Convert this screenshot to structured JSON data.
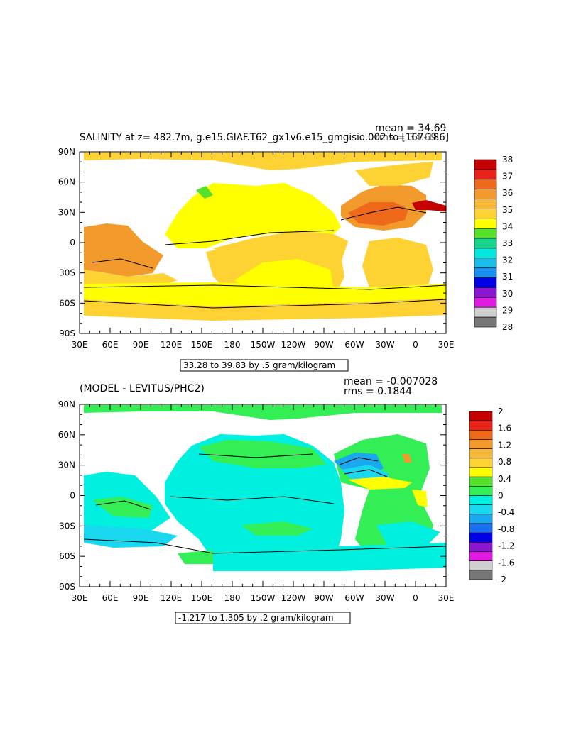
{
  "chart_data": [
    {
      "type": "heatmap",
      "title": "SALINITY at z= 482.7m, g.e15.GIAF.T62_gx1v6.e15_gmgisio.002 to [167-186]",
      "stats": {
        "mean": "mean = 34.69",
        "rms": "rms = 34.69"
      },
      "range_label": "33.28 to 39.83 by .5 gram/kilogram",
      "x_ticks": [
        "30E",
        "60E",
        "90E",
        "120E",
        "150E",
        "180",
        "150W",
        "120W",
        "90W",
        "60W",
        "30W",
        "0",
        "30E"
      ],
      "y_ticks": [
        "90N",
        "60N",
        "30N",
        "0",
        "30S",
        "60S",
        "90S"
      ],
      "colorbar": {
        "labels": [
          "38",
          "37",
          "36",
          "35",
          "34",
          "33",
          "32",
          "31",
          "30",
          "29",
          "28"
        ],
        "colors": [
          "#c40000",
          "#e8231a",
          "#ee6a1a",
          "#f39a2d",
          "#f7b838",
          "#fed233",
          "#ffff00",
          "#55e02a",
          "#17d58a",
          "#00e8e0",
          "#19bde8",
          "#1a8fef",
          "#0000e6",
          "#8a16d1",
          "#e01ae0",
          "#cfcfcf",
          "#777777"
        ]
      }
    },
    {
      "type": "heatmap",
      "title": "(MODEL - LEVITUS/PHC2)",
      "stats": {
        "mean": "mean = -0.007028",
        "rms": "rms = 0.1844"
      },
      "range_label": "-1.217 to 1.305 by .2 gram/kilogram",
      "x_ticks": [
        "30E",
        "60E",
        "90E",
        "120E",
        "150E",
        "180",
        "150W",
        "120W",
        "90W",
        "60W",
        "30W",
        "0",
        "30E"
      ],
      "y_ticks": [
        "90N",
        "60N",
        "30N",
        "0",
        "30S",
        "60S",
        "90S"
      ],
      "colorbar": {
        "labels": [
          "2",
          "1.6",
          "1.2",
          "0.8",
          "0.4",
          "0",
          "-0.4",
          "-0.8",
          "-1.2",
          "-1.6",
          "-2"
        ],
        "colors": [
          "#c40000",
          "#e8231a",
          "#ee6a1a",
          "#f39a2d",
          "#f7b838",
          "#fed233",
          "#ffff00",
          "#55e02a",
          "#33ee55",
          "#00f0e0",
          "#19d8f0",
          "#1aa8ef",
          "#1a6ff0",
          "#0000e6",
          "#8a16d1",
          "#e01ae0",
          "#cfcfcf",
          "#777777"
        ]
      }
    }
  ]
}
